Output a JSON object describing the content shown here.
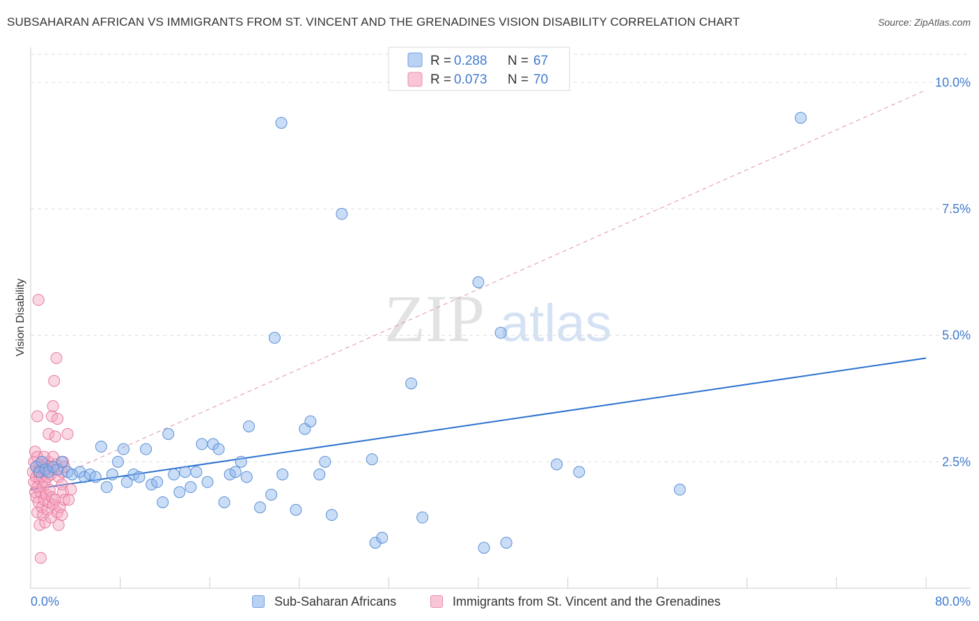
{
  "header": {
    "title": "SUBSAHARAN AFRICAN VS IMMIGRANTS FROM ST. VINCENT AND THE GRENADINES VISION DISABILITY CORRELATION CHART",
    "source": "Source: ZipAtlas.com"
  },
  "watermark": {
    "zip": "ZIP",
    "atlas": "atlas"
  },
  "colors": {
    "blue": "#8ab4ee",
    "blue_stroke": "#5b8fd6",
    "blue_line": "#2a70d0",
    "pink": "#f5a8c0",
    "pink_stroke": "#e87aa0",
    "pink_line": "#e090a8",
    "axis_text": "#3f7ad0"
  },
  "legend": {
    "rows": [
      {
        "r_label": "R =",
        "r_value": "0.288",
        "n_label": "N =",
        "n_value": "67"
      },
      {
        "r_label": "R =",
        "r_value": "0.073",
        "n_label": "N =",
        "n_value": "70"
      }
    ]
  },
  "bottom_legend": {
    "series1": "Sub-Saharan Africans",
    "series2": "Immigrants from St. Vincent and the Grenadines"
  },
  "chart_data": {
    "type": "scatter",
    "title": "SUBSAHARAN AFRICAN VS IMMIGRANTS FROM ST. VINCENT AND THE GRENADINES VISION DISABILITY CORRELATION CHART",
    "xlabel": "",
    "ylabel": "Vision Disability",
    "xlim": [
      0,
      80
    ],
    "ylim": [
      0,
      10.5
    ],
    "x_tick_labels": [
      "0.0%",
      "80.0%"
    ],
    "y_ticks": [
      2.5,
      5.0,
      7.5,
      10.0
    ],
    "y_tick_labels": [
      "2.5%",
      "5.0%",
      "7.5%",
      "10.0%"
    ],
    "series": [
      {
        "name": "Sub-Saharan Africans",
        "r": 0.288,
        "n": 67,
        "trend": {
          "x0": 0,
          "y0": 1.95,
          "x1": 80,
          "y1": 4.55
        },
        "points": [
          [
            0.5,
            2.4
          ],
          [
            0.8,
            2.3
          ],
          [
            1.0,
            2.5
          ],
          [
            1.3,
            2.35
          ],
          [
            1.6,
            2.3
          ],
          [
            2.0,
            2.4
          ],
          [
            2.4,
            2.35
          ],
          [
            2.8,
            2.5
          ],
          [
            3.3,
            2.3
          ],
          [
            3.7,
            2.25
          ],
          [
            4.4,
            2.3
          ],
          [
            4.8,
            2.2
          ],
          [
            5.3,
            2.25
          ],
          [
            5.8,
            2.2
          ],
          [
            6.3,
            2.8
          ],
          [
            6.8,
            2.0
          ],
          [
            7.3,
            2.25
          ],
          [
            7.8,
            2.5
          ],
          [
            8.3,
            2.75
          ],
          [
            8.6,
            2.1
          ],
          [
            9.2,
            2.25
          ],
          [
            9.7,
            2.2
          ],
          [
            10.3,
            2.75
          ],
          [
            10.8,
            2.05
          ],
          [
            11.3,
            2.1
          ],
          [
            11.8,
            1.7
          ],
          [
            12.3,
            3.05
          ],
          [
            12.8,
            2.25
          ],
          [
            13.3,
            1.9
          ],
          [
            13.8,
            2.3
          ],
          [
            14.3,
            2.0
          ],
          [
            14.8,
            2.3
          ],
          [
            15.3,
            2.85
          ],
          [
            15.8,
            2.1
          ],
          [
            16.3,
            2.85
          ],
          [
            16.8,
            2.75
          ],
          [
            17.3,
            1.7
          ],
          [
            17.8,
            2.25
          ],
          [
            18.3,
            2.3
          ],
          [
            18.8,
            2.5
          ],
          [
            19.3,
            2.2
          ],
          [
            19.5,
            3.2
          ],
          [
            20.5,
            1.6
          ],
          [
            21.5,
            1.85
          ],
          [
            22.4,
            9.2
          ],
          [
            22.5,
            2.25
          ],
          [
            23.7,
            1.55
          ],
          [
            24.5,
            3.15
          ],
          [
            25.0,
            3.3
          ],
          [
            25.8,
            2.25
          ],
          [
            26.3,
            2.5
          ],
          [
            26.9,
            1.45
          ],
          [
            27.8,
            7.4
          ],
          [
            30.5,
            2.55
          ],
          [
            30.8,
            0.9
          ],
          [
            31.4,
            1.0
          ],
          [
            34.0,
            4.05
          ],
          [
            35.0,
            1.4
          ],
          [
            40.0,
            6.05
          ],
          [
            40.5,
            0.8
          ],
          [
            42.0,
            5.05
          ],
          [
            42.5,
            0.9
          ],
          [
            47.0,
            2.45
          ],
          [
            49.0,
            2.3
          ],
          [
            58.0,
            1.95
          ],
          [
            68.8,
            9.3
          ],
          [
            21.8,
            4.95
          ]
        ]
      },
      {
        "name": "Immigrants from St. Vincent and the Grenadines",
        "r": 0.073,
        "n": 70,
        "trend": {
          "x0": 0,
          "y0": 1.97,
          "x1": 80,
          "y1": 9.85
        },
        "points": [
          [
            0.2,
            2.3
          ],
          [
            0.3,
            2.5
          ],
          [
            0.3,
            2.1
          ],
          [
            0.4,
            2.7
          ],
          [
            0.4,
            1.9
          ],
          [
            0.5,
            2.4
          ],
          [
            0.5,
            2.2
          ],
          [
            0.5,
            1.8
          ],
          [
            0.6,
            2.6
          ],
          [
            0.6,
            2.0
          ],
          [
            0.6,
            1.5
          ],
          [
            0.7,
            2.3
          ],
          [
            0.7,
            1.7
          ],
          [
            0.7,
            5.7
          ],
          [
            0.8,
            2.45
          ],
          [
            0.8,
            2.15
          ],
          [
            0.8,
            1.25
          ],
          [
            0.9,
            2.35
          ],
          [
            0.9,
            1.9
          ],
          [
            0.9,
            0.6
          ],
          [
            1.0,
            2.5
          ],
          [
            1.0,
            2.2
          ],
          [
            1.0,
            1.6
          ],
          [
            1.1,
            2.4
          ],
          [
            1.1,
            2.0
          ],
          [
            1.1,
            1.45
          ],
          [
            1.2,
            2.3
          ],
          [
            1.2,
            1.75
          ],
          [
            1.3,
            2.45
          ],
          [
            1.3,
            2.1
          ],
          [
            1.3,
            1.3
          ],
          [
            1.4,
            2.35
          ],
          [
            1.4,
            1.85
          ],
          [
            1.5,
            2.2
          ],
          [
            1.5,
            1.55
          ],
          [
            1.6,
            3.05
          ],
          [
            1.6,
            2.5
          ],
          [
            1.6,
            1.7
          ],
          [
            1.7,
            2.4
          ],
          [
            1.7,
            1.95
          ],
          [
            1.8,
            1.4
          ],
          [
            1.8,
            2.25
          ],
          [
            1.9,
            3.4
          ],
          [
            1.9,
            1.8
          ],
          [
            2.0,
            3.6
          ],
          [
            2.0,
            2.6
          ],
          [
            2.0,
            1.65
          ],
          [
            2.1,
            4.1
          ],
          [
            2.1,
            2.35
          ],
          [
            2.2,
            3.0
          ],
          [
            2.2,
            1.75
          ],
          [
            2.3,
            4.55
          ],
          [
            2.3,
            2.45
          ],
          [
            2.4,
            3.35
          ],
          [
            2.4,
            1.5
          ],
          [
            2.5,
            2.2
          ],
          [
            2.5,
            1.25
          ],
          [
            2.6,
            1.6
          ],
          [
            2.8,
            2.3
          ],
          [
            2.8,
            1.45
          ],
          [
            2.8,
            2.05
          ],
          [
            2.9,
            2.5
          ],
          [
            2.9,
            1.9
          ],
          [
            3.0,
            2.4
          ],
          [
            3.0,
            1.75
          ],
          [
            1.2,
            2.6
          ],
          [
            3.3,
            3.05
          ],
          [
            3.4,
            1.75
          ],
          [
            3.6,
            1.95
          ],
          [
            0.6,
            3.4
          ]
        ]
      }
    ]
  }
}
